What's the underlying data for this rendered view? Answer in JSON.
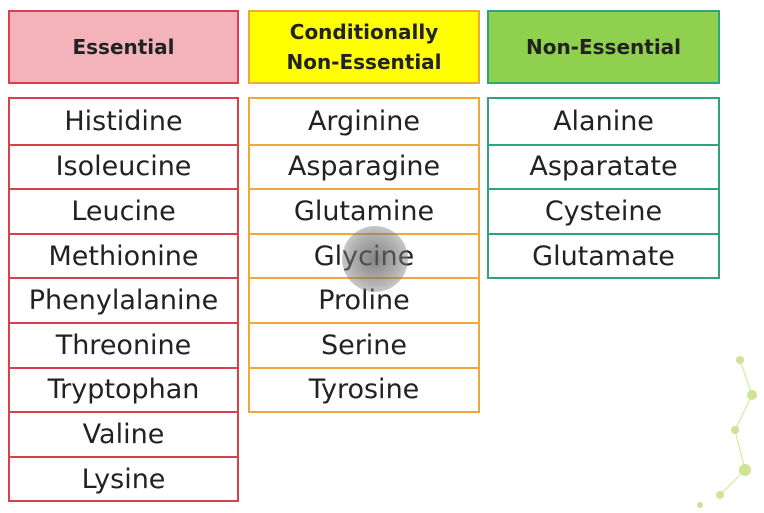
{
  "columns": [
    {
      "header": "Essential",
      "items": [
        "Histidine",
        "Isoleucine",
        "Leucine",
        "Methionine",
        "Phenylalanine",
        "Threonine",
        "Tryptophan",
        "Valine",
        "Lysine"
      ]
    },
    {
      "header": "Conditionally Non-Essential",
      "items": [
        "Arginine",
        "Asparagine",
        "Glutamine",
        "Glycine",
        "Proline",
        "Serine",
        "Tyrosine"
      ]
    },
    {
      "header": "Non-Essential",
      "items": [
        "Alanine",
        "Asparatate",
        "Cysteine",
        "Glutamate"
      ]
    }
  ]
}
